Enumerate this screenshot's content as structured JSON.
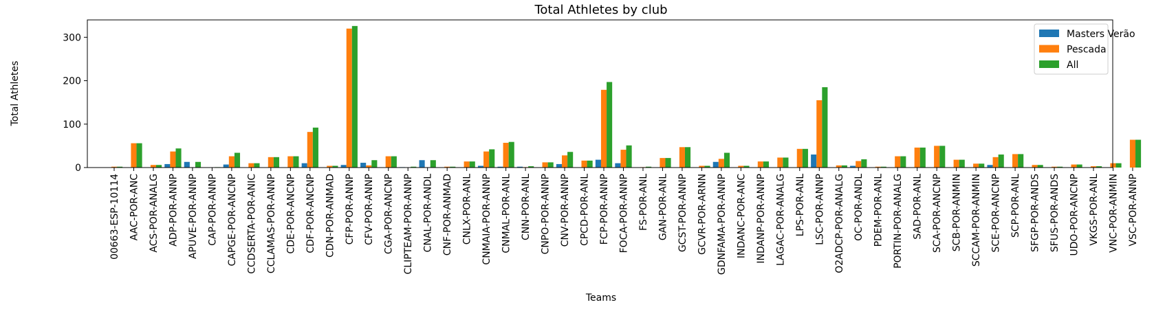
{
  "chart_data": {
    "type": "bar",
    "title": "Total Athletes by club",
    "xlabel": "Teams",
    "ylabel": "Total Athletes",
    "ylim": [
      0,
      340
    ],
    "yticks": [
      0,
      100,
      200,
      300
    ],
    "grid": false,
    "legend_position": "top-right",
    "categories": [
      "00663-ESP-10114",
      "AAC-POR-ANC",
      "ACS-POR-ANALG",
      "ADP-POR-ANNP",
      "APUVE-POR-ANNP",
      "CAP-POR-ANNP",
      "CAPGE-POR-ANCNP",
      "CCDSERTA-POR-ANIC",
      "CCLAMAS-POR-ANNP",
      "CDE-POR-ANCNP",
      "CDF-POR-ANCNP",
      "CDN-POR-ANMAD",
      "CFP-POR-ANNP",
      "CFV-POR-ANNP",
      "CGA-POR-ANCNP",
      "CLIPTEAM-POR-ANNP",
      "CNAL-POR-ANDL",
      "CNF-POR-ANMAD",
      "CNLX-POR-ANL",
      "CNMAIA-POR-ANNP",
      "CNMAL-POR-ANL",
      "CNN-POR-ANL",
      "CNPO-POR-ANNP",
      "CNV-POR-ANNP",
      "CPCD-POR-ANL",
      "FCP-POR-ANNP",
      "FOCA-POR-ANNP",
      "FS-POR-ANL",
      "GAN-POR-ANL",
      "GCST-POR-ANNP",
      "GCVR-POR-ARNN",
      "GDNFAMA-POR-ANNP",
      "INDANC-POR-ANC",
      "INDANP-POR-ANNP",
      "LAGAC-POR-ANALG",
      "LPS-POR-ANL",
      "LSC-POR-ANNP",
      "O2ADCP-POR-ANALG",
      "OC-POR-ANDL",
      "PDEM-POR-ANL",
      "PORTIN-POR-ANALG",
      "SAD-POR-ANL",
      "SCA-POR-ANCNP",
      "SCB-POR-ANMIN",
      "SCCAM-POR-ANMIN",
      "SCE-POR-ANCNP",
      "SCP-POR-ANL",
      "SFGP-POR-ANDS",
      "SFUS-POR-ANDS",
      "UDO-POR-ANCNP",
      "VKGS-POR-ANL",
      "VNC-POR-ANMIN",
      "VSC-POR-ANNP"
    ],
    "series": [
      {
        "name": "Masters Verão",
        "color": "#1f77b4",
        "values": [
          0,
          0,
          0,
          8,
          13,
          0,
          7,
          0,
          0,
          0,
          10,
          0,
          6,
          11,
          0,
          1,
          17,
          0,
          0,
          4,
          2,
          2,
          0,
          8,
          0,
          18,
          10,
          0,
          0,
          0,
          0,
          13,
          0,
          0,
          0,
          0,
          30,
          0,
          4,
          0,
          0,
          0,
          0,
          0,
          0,
          6,
          0,
          0,
          0,
          0,
          0,
          0,
          0
        ]
      },
      {
        "name": "Pescada",
        "color": "#ff7f0e",
        "values": [
          2,
          56,
          6,
          37,
          0,
          0,
          26,
          10,
          24,
          26,
          82,
          4,
          320,
          5,
          26,
          0,
          0,
          2,
          14,
          37,
          57,
          1,
          12,
          28,
          16,
          179,
          41,
          1,
          22,
          47,
          4,
          20,
          4,
          14,
          23,
          43,
          155,
          5,
          15,
          2,
          26,
          46,
          50,
          18,
          9,
          24,
          31,
          6,
          2,
          7,
          3,
          10,
          64
        ]
      },
      {
        "name": "All",
        "color": "#2ca02c",
        "values": [
          2,
          56,
          6,
          44,
          13,
          1,
          34,
          10,
          24,
          26,
          92,
          4,
          326,
          17,
          26,
          2,
          17,
          2,
          14,
          42,
          59,
          3,
          12,
          36,
          16,
          197,
          51,
          2,
          22,
          47,
          4,
          34,
          4,
          14,
          23,
          43,
          185,
          5,
          19,
          2,
          26,
          46,
          50,
          18,
          9,
          30,
          31,
          6,
          2,
          7,
          3,
          10,
          64
        ]
      }
    ]
  }
}
